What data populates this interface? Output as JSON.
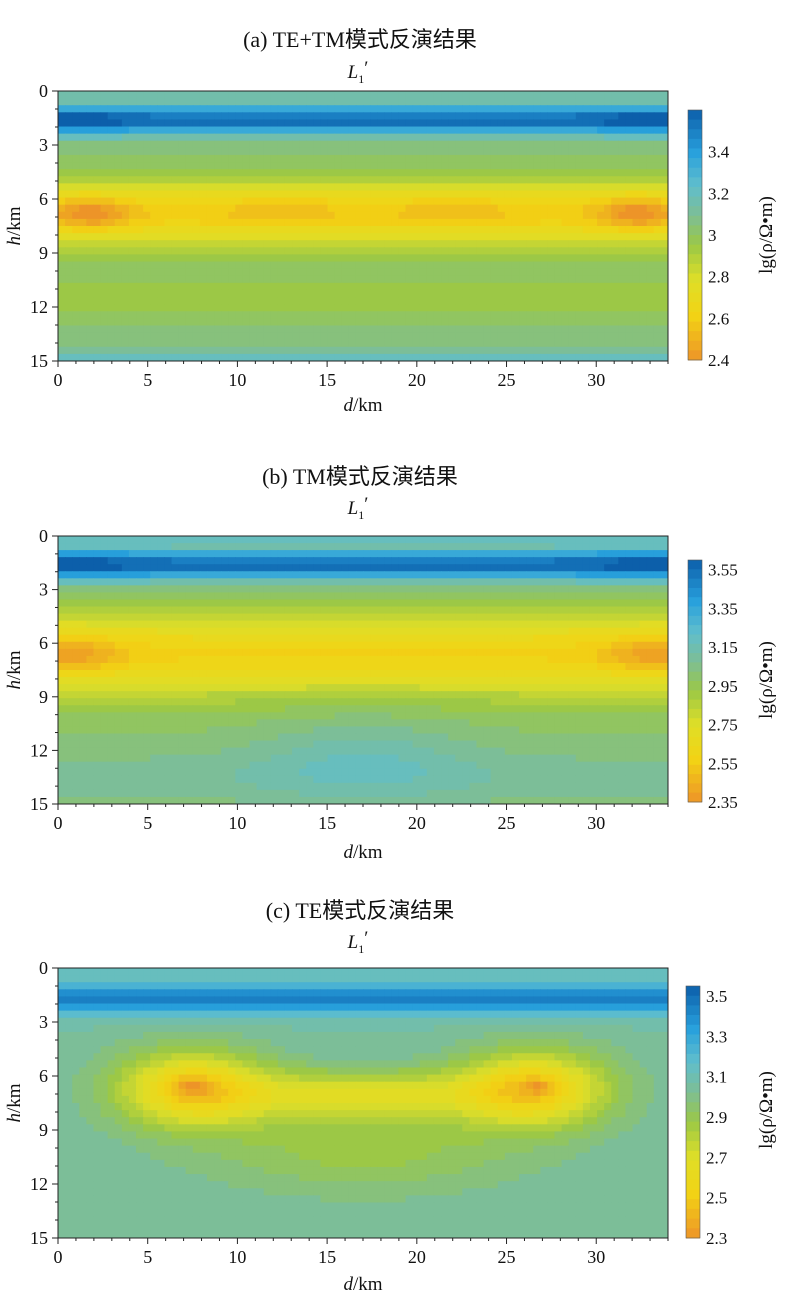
{
  "chart_data": [
    {
      "type": "heatmap",
      "title": "(a) TE+TM模式反演结果",
      "profile_main": "L",
      "profile_sub": "1",
      "profile_prime": "′",
      "xlabel_var": "d",
      "xlabel_unit": "/km",
      "ylabel_var": "h",
      "ylabel_unit": "/km",
      "xticks": [
        "0",
        "5",
        "10",
        "15",
        "20",
        "25",
        "30"
      ],
      "yticks": [
        "0",
        "3",
        "6",
        "9",
        "12",
        "15"
      ],
      "xlim": [
        0,
        34
      ],
      "ylim": [
        0,
        15
      ],
      "colorbar": {
        "label": "lg(ρ/Ω•m)",
        "ticks": [
          "3.4",
          "3.2",
          "3",
          "2.8",
          "2.6",
          "2.4"
        ],
        "range": [
          2.4,
          3.6
        ]
      },
      "field": {
        "bg": 3.05,
        "surface": 3.15,
        "layers": [
          {
            "depth": 1.6,
            "sigma": 0.8,
            "amp": 0.5
          },
          {
            "depth": 6.8,
            "sigma": 1.9,
            "amp": -0.45
          },
          {
            "depth": 11.5,
            "sigma": 1.2,
            "amp": -0.12
          },
          {
            "depth": 14.9,
            "sigma": 0.5,
            "amp": 0.15
          }
        ],
        "blobs": [
          {
            "x": 1.8,
            "y": 6.8,
            "sx": 2.2,
            "sy": 0.9,
            "amp": -0.22
          },
          {
            "x": 32.3,
            "y": 6.8,
            "sx": 2.2,
            "sy": 0.9,
            "amp": -0.22
          },
          {
            "x": 12.5,
            "y": 6.6,
            "sx": 3.5,
            "sy": 0.9,
            "amp": -0.06
          },
          {
            "x": 22.0,
            "y": 6.6,
            "sx": 3.5,
            "sy": 0.9,
            "amp": -0.06
          },
          {
            "x": 1.5,
            "y": 1.7,
            "sx": 2.5,
            "sy": 0.7,
            "amp": 0.1
          },
          {
            "x": 32.5,
            "y": 1.7,
            "sx": 2.5,
            "sy": 0.7,
            "amp": 0.1
          }
        ]
      }
    },
    {
      "type": "heatmap",
      "title": "(b) TM模式反演结果",
      "profile_main": "L",
      "profile_sub": "1",
      "profile_prime": "′",
      "xlabel_var": "d",
      "xlabel_unit": "/km",
      "ylabel_var": "h",
      "ylabel_unit": "/km",
      "xticks": [
        "0",
        "5",
        "10",
        "15",
        "20",
        "25",
        "30"
      ],
      "yticks": [
        "0",
        "3",
        "6",
        "9",
        "12",
        "15"
      ],
      "xlim": [
        0,
        34
      ],
      "ylim": [
        0,
        15
      ],
      "colorbar": {
        "label": "lg(ρ/Ω•m)",
        "ticks": [
          "3.55",
          "3.35",
          "3.15",
          "2.95",
          "2.75",
          "2.55",
          "2.35"
        ],
        "range": [
          2.35,
          3.6
        ]
      },
      "field": {
        "bg": 3.0,
        "surface": 3.2,
        "layers": [
          {
            "depth": 1.6,
            "sigma": 0.9,
            "amp": 0.55
          },
          {
            "depth": 6.6,
            "sigma": 2.3,
            "amp": -0.42
          },
          {
            "depth": 13.5,
            "sigma": 1.6,
            "amp": 0.08
          }
        ],
        "blobs": [
          {
            "x": 0.5,
            "y": 6.6,
            "sx": 3.0,
            "sy": 1.0,
            "amp": -0.2
          },
          {
            "x": 33.5,
            "y": 6.6,
            "sx": 3.0,
            "sy": 1.0,
            "amp": -0.2
          },
          {
            "x": 17.0,
            "y": 12.5,
            "sx": 6.0,
            "sy": 2.5,
            "amp": 0.12
          },
          {
            "x": 1.5,
            "y": 1.6,
            "sx": 3.0,
            "sy": 0.7,
            "amp": 0.08
          },
          {
            "x": 32.5,
            "y": 1.6,
            "sx": 3.0,
            "sy": 0.7,
            "amp": 0.08
          }
        ]
      }
    },
    {
      "type": "heatmap",
      "title": "(c) TE模式反演结果",
      "profile_main": "L",
      "profile_sub": "1",
      "profile_prime": "′",
      "xlabel_var": "d",
      "xlabel_unit": "/km",
      "ylabel_var": "h",
      "ylabel_unit": "/km",
      "xticks": [
        "0",
        "5",
        "10",
        "15",
        "20",
        "25",
        "30"
      ],
      "yticks": [
        "0",
        "3",
        "6",
        "9",
        "12",
        "15"
      ],
      "xlim": [
        0,
        34
      ],
      "ylim": [
        0,
        15
      ],
      "colorbar": {
        "label": "lg(ρ/Ω•m)",
        "ticks": [
          "3.5",
          "3.3",
          "3.1",
          "2.9",
          "2.7",
          "2.5",
          "2.3"
        ],
        "range": [
          2.3,
          3.55
        ]
      },
      "field": {
        "bg": 3.05,
        "surface": 3.15,
        "layers": [
          {
            "depth": 1.7,
            "sigma": 0.9,
            "amp": 0.4
          }
        ],
        "blobs": [
          {
            "x": 7.5,
            "y": 6.7,
            "sx": 4.2,
            "sy": 2.1,
            "amp": -0.55
          },
          {
            "x": 26.5,
            "y": 6.7,
            "sx": 4.2,
            "sy": 2.1,
            "amp": -0.55
          },
          {
            "x": 17.0,
            "y": 7.0,
            "sx": 7.0,
            "sy": 1.3,
            "amp": -0.35
          },
          {
            "x": 7.5,
            "y": 6.6,
            "sx": 1.0,
            "sy": 0.5,
            "amp": -0.15
          },
          {
            "x": 26.8,
            "y": 6.6,
            "sx": 0.7,
            "sy": 0.4,
            "amp": -0.15
          },
          {
            "x": 17.0,
            "y": 10.0,
            "sx": 9.0,
            "sy": 2.5,
            "amp": -0.18
          }
        ]
      }
    }
  ]
}
